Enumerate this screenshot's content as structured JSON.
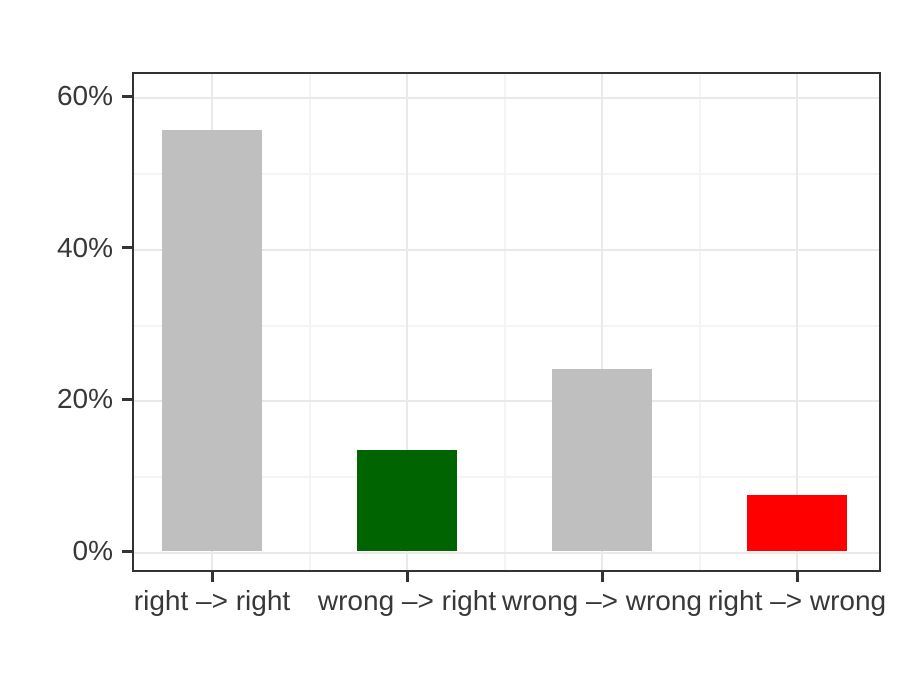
{
  "chart_data": {
    "type": "bar",
    "categories": [
      "right –> right",
      "wrong –> right",
      "wrong –> wrong",
      "right –> wrong"
    ],
    "values": [
      55.5,
      13.3,
      24.0,
      7.4
    ],
    "bar_colors": [
      "#bfbfbf",
      "#006400",
      "#bfbfbf",
      "#ff0000"
    ],
    "title": "",
    "xlabel": "",
    "ylabel": "",
    "ylim": [
      -2.8,
      63.2
    ],
    "y_major_ticks": [
      0,
      20,
      40,
      60
    ],
    "y_minor_ticks": [
      10,
      30,
      50
    ],
    "y_tick_labels": [
      "0%",
      "20%",
      "40%",
      "60%"
    ],
    "grid": "major and minor, both axes",
    "legend": "none"
  },
  "colors": {
    "background": "#ffffff",
    "panel_border": "#333333",
    "grid_major": "#e9e9e9",
    "grid_minor": "#f4f4f4",
    "tick_mark": "#333333",
    "tick_text": "#383838"
  }
}
